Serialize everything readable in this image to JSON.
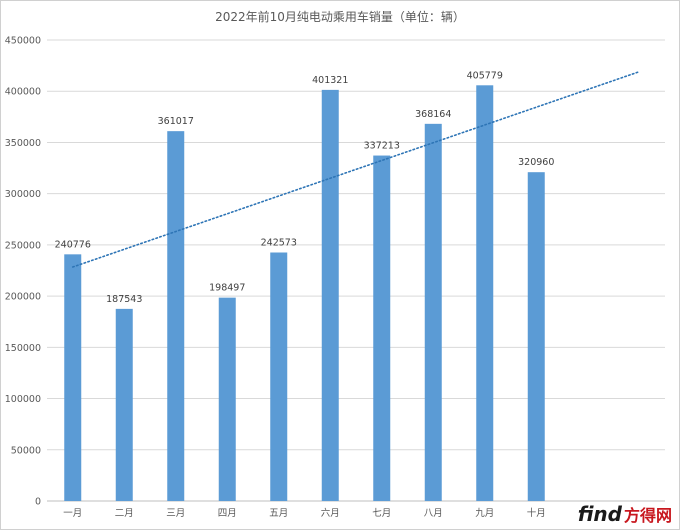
{
  "chart_data": {
    "type": "bar",
    "title": "2022年前10月纯电动乘用车销量（单位：辆）",
    "categories": [
      "一月",
      "二月",
      "三月",
      "四月",
      "五月",
      "六月",
      "七月",
      "八月",
      "九月",
      "十月"
    ],
    "values": [
      240776,
      187543,
      361017,
      198497,
      242573,
      401321,
      337213,
      368164,
      405779,
      320960
    ],
    "ylim": [
      0,
      450000
    ],
    "yticks": [
      "0",
      "50000",
      "100000",
      "150000",
      "200000",
      "250000",
      "300000",
      "350000",
      "400000",
      "450000"
    ],
    "trendline": {
      "type": "linear",
      "style": "dotted"
    },
    "grid": true,
    "bar_color": "#5b9bd5",
    "trend_color": "#2e75b6"
  },
  "watermark": {
    "text": "find",
    "cn": "方得网"
  }
}
